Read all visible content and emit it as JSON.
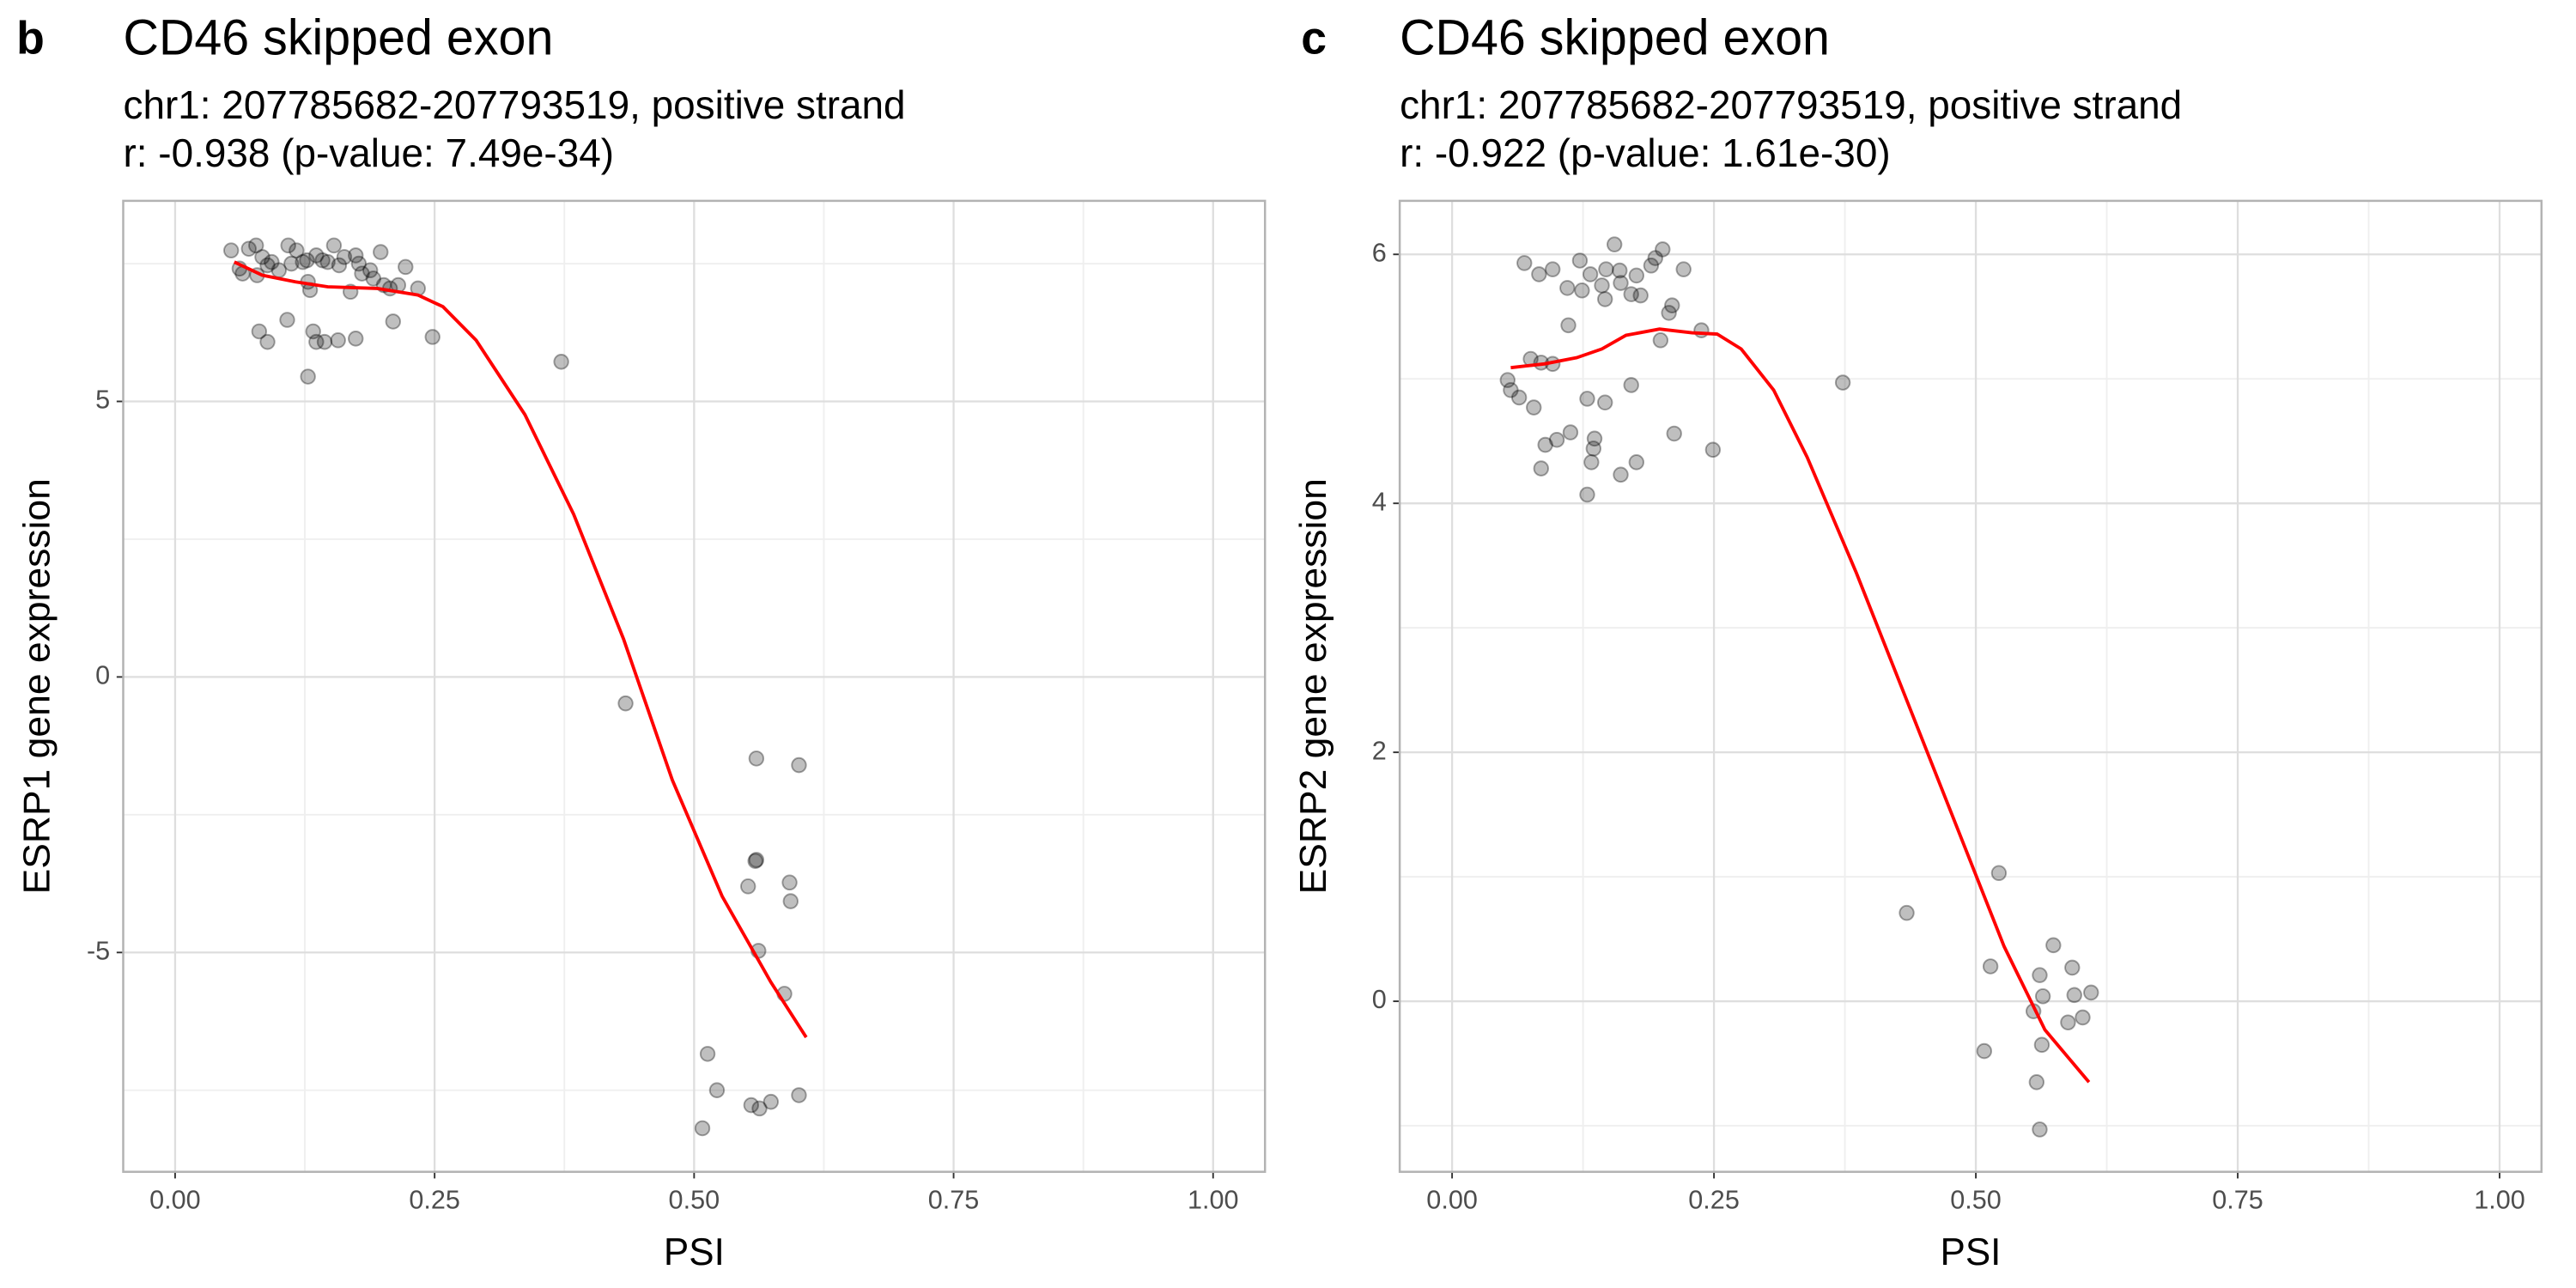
{
  "chart_data": [
    {
      "type": "scatter",
      "panel_label": "b",
      "title": "CD46 skipped exon",
      "subtitle": [
        "chr1: 207785682-207793519, positive strand",
        "r: -0.938 (p-value: 7.49e-34)"
      ],
      "xlabel": "PSI",
      "ylabel": "ESRP1 gene expression",
      "xlim": [
        -0.05,
        1.05
      ],
      "ylim": [
        -8.98,
        8.64
      ],
      "xticks": [
        {
          "value": 0,
          "label": "0.00"
        },
        {
          "value": 0.25,
          "label": "0.25"
        },
        {
          "value": 0.5,
          "label": "0.50"
        },
        {
          "value": 0.75,
          "label": "0.75"
        },
        {
          "value": 1,
          "label": "1.00"
        }
      ],
      "yticks": [
        -5,
        0,
        5
      ],
      "grid": true,
      "points": {
        "color": "#000000",
        "alpha": 0.25,
        "x": [
          0.054,
          0.062,
          0.065,
          0.071,
          0.078,
          0.079,
          0.084,
          0.089,
          0.093,
          0.1,
          0.109,
          0.112,
          0.117,
          0.123,
          0.128,
          0.127,
          0.13,
          0.136,
          0.142,
          0.147,
          0.153,
          0.158,
          0.163,
          0.169,
          0.174,
          0.177,
          0.18,
          0.188,
          0.191,
          0.198,
          0.201,
          0.207,
          0.215,
          0.222,
          0.234,
          0.108,
          0.081,
          0.089,
          0.133,
          0.136,
          0.144,
          0.157,
          0.174,
          0.21,
          0.248,
          0.128,
          0.372,
          0.434,
          0.56,
          0.559,
          0.56,
          0.552,
          0.592,
          0.593,
          0.562,
          0.587,
          0.601,
          0.513,
          0.522,
          0.555,
          0.563,
          0.574,
          0.601,
          0.508
        ],
        "y": [
          7.74,
          7.41,
          7.32,
          7.77,
          7.83,
          7.29,
          7.62,
          7.47,
          7.53,
          7.38,
          7.83,
          7.5,
          7.74,
          7.53,
          7.17,
          7.56,
          7.02,
          7.65,
          7.56,
          7.53,
          7.83,
          7.47,
          7.62,
          6.99,
          7.65,
          7.5,
          7.32,
          7.38,
          7.23,
          7.71,
          7.11,
          7.05,
          7.11,
          7.44,
          7.05,
          6.48,
          6.27,
          6.08,
          6.27,
          6.08,
          6.08,
          6.11,
          6.14,
          6.45,
          6.17,
          5.45,
          5.72,
          -0.48,
          -1.48,
          -3.34,
          -3.32,
          -3.8,
          -3.73,
          -4.07,
          -4.97,
          -5.75,
          -1.6,
          -6.84,
          -7.5,
          -7.77,
          -7.83,
          -7.71,
          -7.59,
          -8.19
        ]
      },
      "trend": {
        "color": "#ff0000",
        "x": [
          0.057,
          0.084,
          0.116,
          0.147,
          0.195,
          0.234,
          0.258,
          0.29,
          0.337,
          0.384,
          0.432,
          0.479,
          0.527,
          0.574,
          0.608
        ],
        "y": [
          7.53,
          7.29,
          7.17,
          7.08,
          7.05,
          6.93,
          6.72,
          6.11,
          4.76,
          2.95,
          0.69,
          -1.87,
          -3.98,
          -5.54,
          -6.54
        ]
      }
    },
    {
      "type": "scatter",
      "panel_label": "c",
      "title": "CD46 skipped exon",
      "subtitle": [
        "chr1: 207785682-207793519, positive strand",
        "r: -0.922 (p-value: 1.61e-30)"
      ],
      "xlabel": "PSI",
      "ylabel": "ESRP2 gene expression",
      "xlim": [
        -0.05,
        1.04
      ],
      "ylim": [
        -1.37,
        6.43
      ],
      "xticks": [
        {
          "value": 0,
          "label": "0.00"
        },
        {
          "value": 0.25,
          "label": "0.25"
        },
        {
          "value": 0.5,
          "label": "0.50"
        },
        {
          "value": 0.75,
          "label": "0.75"
        },
        {
          "value": 1,
          "label": "1.00"
        }
      ],
      "yticks": [
        0,
        2,
        4,
        6
      ],
      "grid": true,
      "points": {
        "color": "#000000",
        "alpha": 0.25,
        "x": [
          0.069,
          0.083,
          0.096,
          0.11,
          0.122,
          0.132,
          0.143,
          0.147,
          0.16,
          0.171,
          0.176,
          0.19,
          0.201,
          0.194,
          0.18,
          0.207,
          0.21,
          0.221,
          0.161,
          0.155,
          0.238,
          0.124,
          0.199,
          0.111,
          0.146,
          0.053,
          0.056,
          0.064,
          0.075,
          0.085,
          0.096,
          0.078,
          0.089,
          0.1,
          0.113,
          0.136,
          0.129,
          0.146,
          0.171,
          0.135,
          0.133,
          0.176,
          0.161,
          0.212,
          0.249,
          0.129,
          0.085,
          0.373,
          0.434,
          0.522,
          0.514,
          0.574,
          0.592,
          0.561,
          0.564,
          0.61,
          0.594,
          0.508,
          0.555,
          0.563,
          0.588,
          0.602,
          0.558,
          0.561
        ],
        "y": [
          5.93,
          5.84,
          5.88,
          5.73,
          5.95,
          5.84,
          5.75,
          5.88,
          5.87,
          5.68,
          5.83,
          5.91,
          6.04,
          5.97,
          5.67,
          5.53,
          5.59,
          5.88,
          5.77,
          6.08,
          5.39,
          5.71,
          5.31,
          5.43,
          5.64,
          4.99,
          4.91,
          4.85,
          5.16,
          5.13,
          5.12,
          4.77,
          4.47,
          4.51,
          4.57,
          4.52,
          4.84,
          4.81,
          4.95,
          4.44,
          4.33,
          4.33,
          4.23,
          4.56,
          4.43,
          4.07,
          4.28,
          4.97,
          0.71,
          1.03,
          0.28,
          0.45,
          0.27,
          0.21,
          0.04,
          0.07,
          0.05,
          -0.4,
          -0.08,
          -0.35,
          -0.17,
          -0.13,
          -0.65,
          -1.03
        ]
      },
      "trend": {
        "color": "#ff0000",
        "x": [
          0.056,
          0.088,
          0.119,
          0.143,
          0.166,
          0.198,
          0.229,
          0.253,
          0.276,
          0.307,
          0.339,
          0.386,
          0.433,
          0.48,
          0.527,
          0.566,
          0.608
        ],
        "y": [
          5.09,
          5.12,
          5.17,
          5.24,
          5.35,
          5.4,
          5.37,
          5.36,
          5.24,
          4.91,
          4.37,
          3.44,
          2.44,
          1.44,
          0.44,
          -0.23,
          -0.65
        ]
      }
    }
  ]
}
